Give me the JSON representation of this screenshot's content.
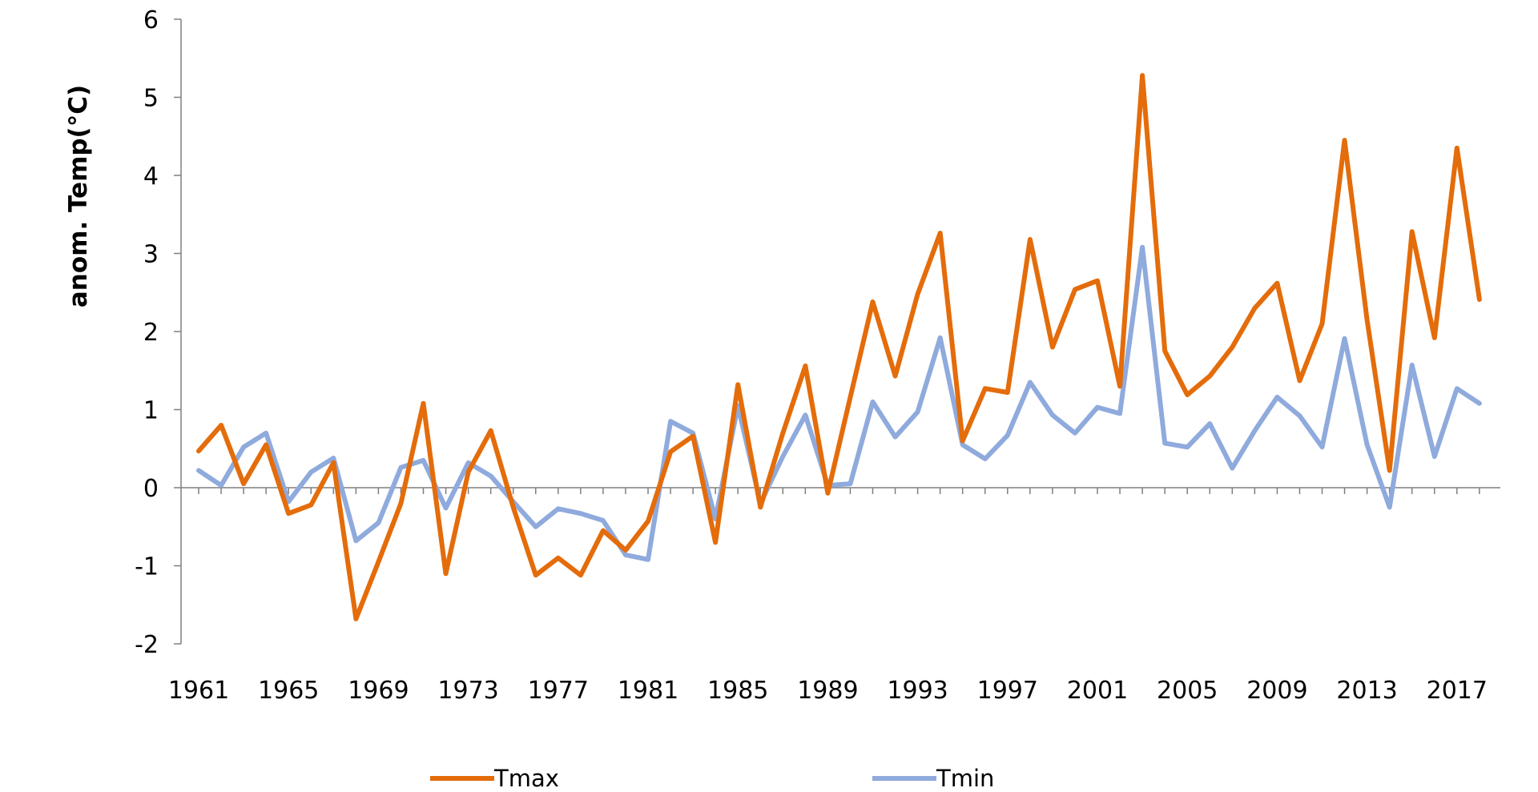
{
  "chart_data": {
    "type": "line",
    "title": "",
    "xlabel": "",
    "ylabel": "anom. Temp(°C)",
    "ylim": [
      -2,
      6
    ],
    "yticks": [
      -2,
      -1,
      0,
      1,
      2,
      3,
      4,
      5,
      6
    ],
    "xlim": [
      1961,
      2018
    ],
    "xticks": [
      1961,
      1965,
      1969,
      1973,
      1977,
      1981,
      1985,
      1989,
      1993,
      1997,
      2001,
      2005,
      2009,
      2013,
      2017
    ],
    "grid": false,
    "legend_position": "bottom",
    "x": [
      1961,
      1962,
      1963,
      1964,
      1965,
      1966,
      1967,
      1968,
      1969,
      1970,
      1971,
      1972,
      1973,
      1974,
      1975,
      1976,
      1977,
      1978,
      1979,
      1980,
      1981,
      1982,
      1983,
      1984,
      1985,
      1986,
      1987,
      1988,
      1989,
      1990,
      1991,
      1992,
      1993,
      1994,
      1995,
      1996,
      1997,
      1998,
      1999,
      2000,
      2001,
      2002,
      2003,
      2004,
      2005,
      2006,
      2007,
      2008,
      2009,
      2010,
      2011,
      2012,
      2013,
      2014,
      2015,
      2016,
      2017,
      2018
    ],
    "series": [
      {
        "name": "Tmax",
        "color": "#e46c0a",
        "values": [
          0.47,
          0.8,
          0.05,
          0.55,
          -0.33,
          -0.22,
          0.32,
          -1.68,
          -0.95,
          -0.2,
          1.08,
          -1.1,
          0.2,
          0.73,
          -0.25,
          -1.12,
          -0.9,
          -1.12,
          -0.55,
          -0.8,
          -0.43,
          0.46,
          0.66,
          -0.7,
          1.32,
          -0.25,
          0.7,
          1.56,
          -0.07,
          1.16,
          2.38,
          1.43,
          2.48,
          3.26,
          0.6,
          1.27,
          1.22,
          3.18,
          1.8,
          2.54,
          2.65,
          1.3,
          5.28,
          1.75,
          1.19,
          1.43,
          1.8,
          2.3,
          2.62,
          1.37,
          2.1,
          4.45,
          2.15,
          0.22,
          3.28,
          1.92,
          4.35,
          2.41
        ]
      },
      {
        "name": "Tmin",
        "color": "#8faadc",
        "values": [
          0.22,
          0.03,
          0.52,
          0.7,
          -0.18,
          0.2,
          0.38,
          -0.68,
          -0.45,
          0.26,
          0.35,
          -0.26,
          0.32,
          0.15,
          -0.18,
          -0.5,
          -0.27,
          -0.33,
          -0.42,
          -0.86,
          -0.92,
          0.85,
          0.7,
          -0.4,
          1.05,
          -0.2,
          0.4,
          0.93,
          0.03,
          0.05,
          1.1,
          0.65,
          0.97,
          1.92,
          0.55,
          0.37,
          0.67,
          1.35,
          0.93,
          0.7,
          1.03,
          0.95,
          3.08,
          0.57,
          0.52,
          0.82,
          0.25,
          0.73,
          1.16,
          0.92,
          0.52,
          1.91,
          0.55,
          -0.25,
          1.57,
          0.4,
          1.27,
          1.08
        ]
      }
    ]
  }
}
